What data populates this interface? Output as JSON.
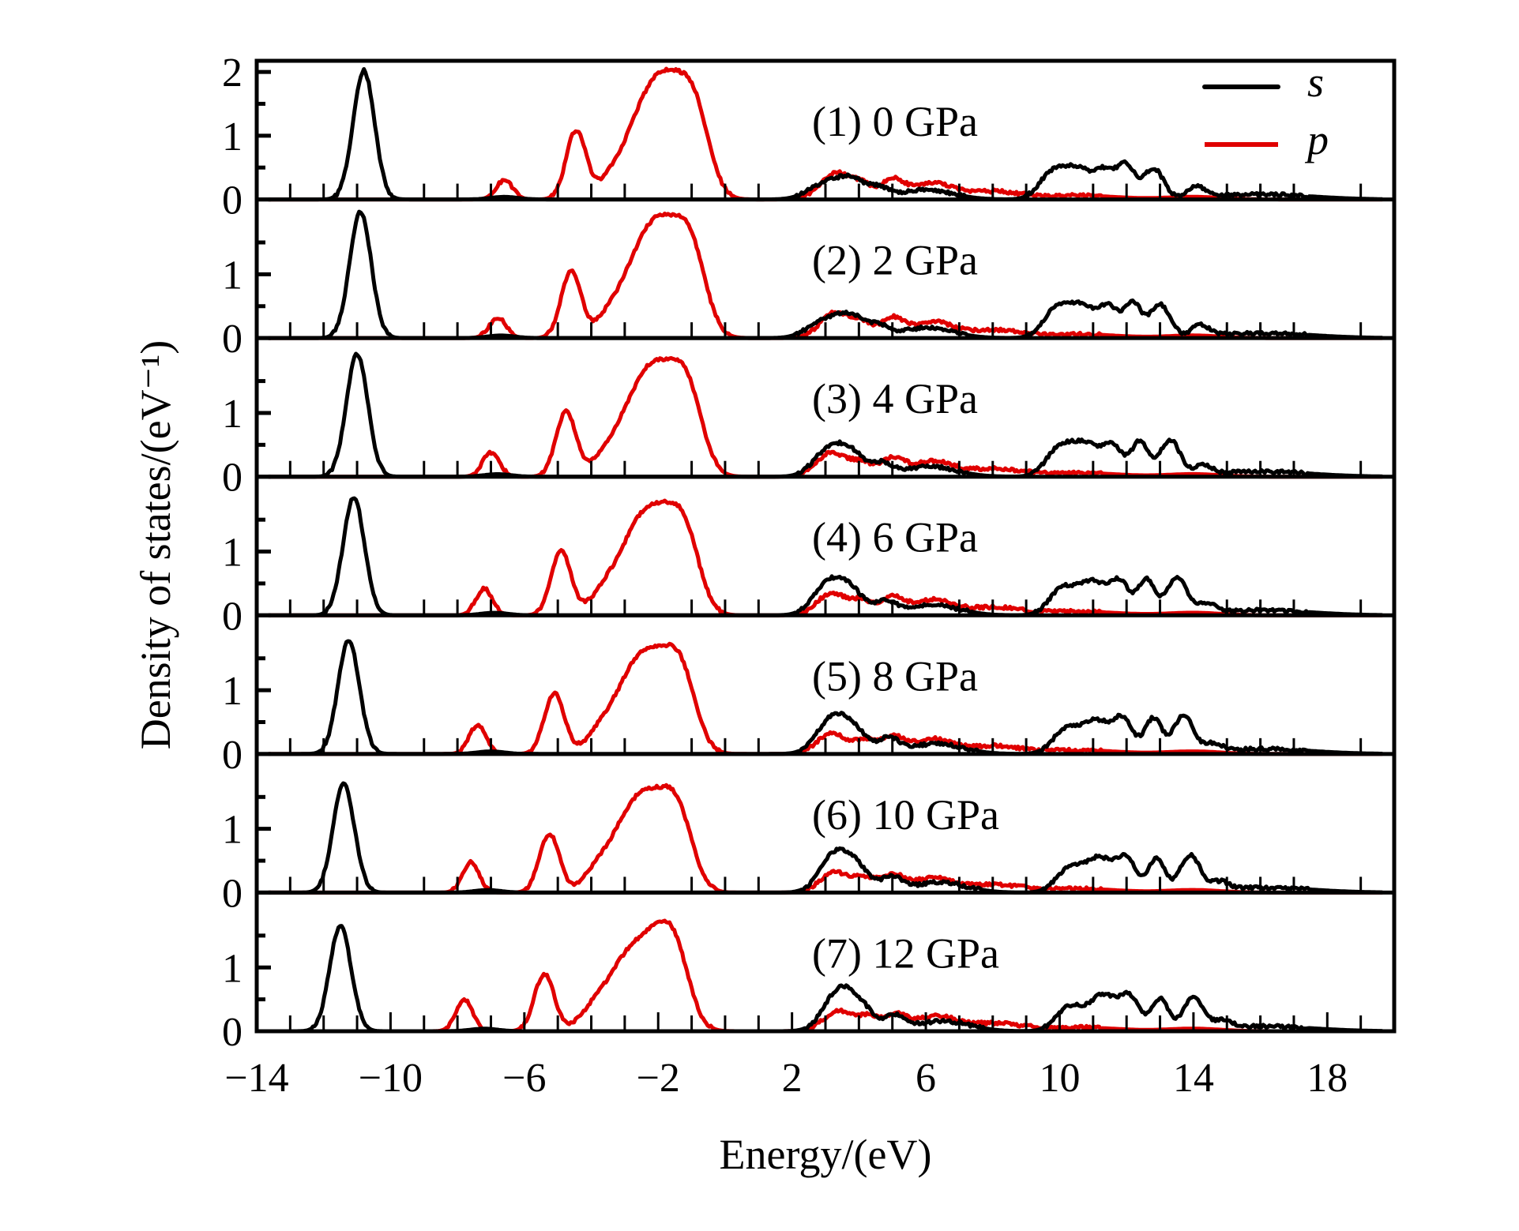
{
  "chart_data": {
    "type": "line",
    "title": "",
    "xlabel": "Energy/(eV)",
    "ylabel": "Density of states/(eV⁻¹)",
    "xlim": [
      -14,
      20
    ],
    "x_ticks": [
      -14,
      -10,
      -6,
      -2,
      2,
      6,
      10,
      14,
      18
    ],
    "x_tick_labels": [
      "−14",
      "−10",
      "−6",
      "−2",
      "2",
      "6",
      "10",
      "14",
      "18"
    ],
    "y_ticks_per_panel": [
      0,
      1
    ],
    "top_panel_extra_tick": 2,
    "ylim_per_panel": [
      0,
      2.1
    ],
    "grid": false,
    "legend": {
      "position": "top-right",
      "entries": [
        {
          "name": "s",
          "color": "#000000"
        },
        {
          "name": "p",
          "color": "#e00000"
        }
      ]
    },
    "panels": [
      {
        "label": "(1) 0 GPa",
        "pressure_gpa": 0,
        "s_peaks": [
          [
            -10.8,
            2.02,
            0.32
          ],
          [
            -6.6,
            0.04,
            0.4
          ],
          [
            3.0,
            0.25,
            0.5
          ],
          [
            3.8,
            0.28,
            0.4
          ],
          [
            4.6,
            0.15,
            0.3
          ],
          [
            6.0,
            0.15,
            0.8
          ],
          [
            9.8,
            0.42,
            0.4
          ],
          [
            10.6,
            0.45,
            0.4
          ],
          [
            11.4,
            0.42,
            0.3
          ],
          [
            12.0,
            0.5,
            0.25
          ],
          [
            12.8,
            0.48,
            0.3
          ],
          [
            14.1,
            0.18,
            0.25
          ],
          [
            16.0,
            0.08,
            1.5
          ]
        ],
        "p_peaks": [
          [
            -6.6,
            0.3,
            0.25
          ],
          [
            -4.45,
            1.08,
            0.3
          ],
          [
            -3.4,
            0.25,
            0.4
          ],
          [
            -2.5,
            1.05,
            0.55
          ],
          [
            -1.7,
            1.42,
            0.55
          ],
          [
            -0.9,
            1.2,
            0.45
          ],
          [
            3.3,
            0.42,
            0.45
          ],
          [
            4.1,
            0.2,
            0.3
          ],
          [
            5.0,
            0.3,
            0.35
          ],
          [
            6.2,
            0.25,
            0.6
          ],
          [
            8.0,
            0.12,
            0.8
          ],
          [
            10.5,
            0.06,
            1.2
          ],
          [
            14.0,
            0.04,
            0.8
          ]
        ]
      },
      {
        "label": "(2) 2 GPa",
        "pressure_gpa": 2,
        "s_peaks": [
          [
            -10.9,
            1.98,
            0.32
          ],
          [
            -6.7,
            0.04,
            0.4
          ],
          [
            3.0,
            0.28,
            0.5
          ],
          [
            3.8,
            0.3,
            0.4
          ],
          [
            4.6,
            0.16,
            0.3
          ],
          [
            6.0,
            0.16,
            0.8
          ],
          [
            9.9,
            0.44,
            0.4
          ],
          [
            10.7,
            0.47,
            0.4
          ],
          [
            11.5,
            0.45,
            0.3
          ],
          [
            12.2,
            0.52,
            0.25
          ],
          [
            13.0,
            0.52,
            0.3
          ],
          [
            14.2,
            0.18,
            0.25
          ],
          [
            16.0,
            0.08,
            1.5
          ]
        ],
        "p_peaks": [
          [
            -6.8,
            0.32,
            0.25
          ],
          [
            -4.6,
            1.05,
            0.3
          ],
          [
            -3.5,
            0.25,
            0.4
          ],
          [
            -2.6,
            1.0,
            0.55
          ],
          [
            -1.8,
            1.35,
            0.55
          ],
          [
            -1.0,
            1.18,
            0.45
          ],
          [
            3.3,
            0.4,
            0.45
          ],
          [
            4.1,
            0.2,
            0.3
          ],
          [
            5.0,
            0.3,
            0.35
          ],
          [
            6.2,
            0.25,
            0.6
          ],
          [
            8.0,
            0.12,
            0.8
          ],
          [
            10.5,
            0.06,
            1.2
          ],
          [
            14.0,
            0.04,
            0.8
          ]
        ]
      },
      {
        "label": "(3) 4 GPa",
        "pressure_gpa": 4,
        "s_peaks": [
          [
            -11.0,
            1.92,
            0.32
          ],
          [
            -6.8,
            0.04,
            0.4
          ],
          [
            3.1,
            0.42,
            0.45
          ],
          [
            3.8,
            0.32,
            0.4
          ],
          [
            4.7,
            0.18,
            0.3
          ],
          [
            6.1,
            0.16,
            0.8
          ],
          [
            10.0,
            0.44,
            0.4
          ],
          [
            10.8,
            0.48,
            0.4
          ],
          [
            11.6,
            0.46,
            0.3
          ],
          [
            12.4,
            0.54,
            0.25
          ],
          [
            13.3,
            0.56,
            0.3
          ],
          [
            14.3,
            0.15,
            0.25
          ],
          [
            16.0,
            0.08,
            1.5
          ]
        ],
        "p_peaks": [
          [
            -7.0,
            0.38,
            0.25
          ],
          [
            -4.75,
            1.02,
            0.3
          ],
          [
            -3.6,
            0.25,
            0.4
          ],
          [
            -2.7,
            0.95,
            0.55
          ],
          [
            -1.9,
            1.28,
            0.55
          ],
          [
            -1.1,
            1.15,
            0.45
          ],
          [
            3.2,
            0.38,
            0.45
          ],
          [
            4.1,
            0.2,
            0.3
          ],
          [
            5.0,
            0.28,
            0.35
          ],
          [
            6.2,
            0.24,
            0.6
          ],
          [
            8.0,
            0.12,
            0.8
          ],
          [
            10.5,
            0.06,
            1.2
          ],
          [
            14.0,
            0.04,
            0.8
          ]
        ]
      },
      {
        "label": "(4) 6 GPa",
        "pressure_gpa": 6,
        "s_peaks": [
          [
            -11.1,
            1.85,
            0.32
          ],
          [
            -6.9,
            0.04,
            0.4
          ],
          [
            3.1,
            0.5,
            0.45
          ],
          [
            3.8,
            0.32,
            0.4
          ],
          [
            4.8,
            0.2,
            0.3
          ],
          [
            6.2,
            0.16,
            0.8
          ],
          [
            10.1,
            0.42,
            0.4
          ],
          [
            11.0,
            0.5,
            0.4
          ],
          [
            11.8,
            0.5,
            0.3
          ],
          [
            12.6,
            0.55,
            0.25
          ],
          [
            13.5,
            0.58,
            0.3
          ],
          [
            14.4,
            0.15,
            0.25
          ],
          [
            16.0,
            0.08,
            1.5
          ]
        ],
        "p_peaks": [
          [
            -7.2,
            0.42,
            0.25
          ],
          [
            -4.9,
            1.0,
            0.3
          ],
          [
            -3.7,
            0.25,
            0.4
          ],
          [
            -2.8,
            0.92,
            0.55
          ],
          [
            -2.0,
            1.22,
            0.55
          ],
          [
            -1.2,
            1.12,
            0.45
          ],
          [
            3.2,
            0.35,
            0.45
          ],
          [
            4.1,
            0.2,
            0.3
          ],
          [
            5.0,
            0.27,
            0.35
          ],
          [
            6.2,
            0.24,
            0.6
          ],
          [
            8.0,
            0.12,
            0.8
          ],
          [
            10.5,
            0.06,
            1.2
          ],
          [
            14.0,
            0.04,
            0.8
          ]
        ]
      },
      {
        "label": "(5) 8 GPa",
        "pressure_gpa": 8,
        "s_peaks": [
          [
            -11.25,
            1.78,
            0.32
          ],
          [
            -7.0,
            0.04,
            0.4
          ],
          [
            3.2,
            0.55,
            0.45
          ],
          [
            3.9,
            0.3,
            0.4
          ],
          [
            4.9,
            0.22,
            0.3
          ],
          [
            6.3,
            0.16,
            0.8
          ],
          [
            10.2,
            0.38,
            0.4
          ],
          [
            11.1,
            0.5,
            0.4
          ],
          [
            11.9,
            0.52,
            0.3
          ],
          [
            12.8,
            0.55,
            0.25
          ],
          [
            13.7,
            0.58,
            0.3
          ],
          [
            14.6,
            0.12,
            0.25
          ],
          [
            16.0,
            0.08,
            1.5
          ]
        ],
        "p_peaks": [
          [
            -7.4,
            0.45,
            0.25
          ],
          [
            -5.1,
            0.95,
            0.3
          ],
          [
            -3.8,
            0.25,
            0.4
          ],
          [
            -2.9,
            0.9,
            0.55
          ],
          [
            -2.1,
            1.15,
            0.55
          ],
          [
            -1.3,
            1.1,
            0.45
          ],
          [
            3.2,
            0.32,
            0.45
          ],
          [
            4.2,
            0.2,
            0.3
          ],
          [
            5.0,
            0.26,
            0.35
          ],
          [
            6.2,
            0.23,
            0.6
          ],
          [
            8.0,
            0.12,
            0.8
          ],
          [
            10.5,
            0.06,
            1.2
          ],
          [
            14.0,
            0.04,
            0.8
          ]
        ]
      },
      {
        "label": "(6) 10 GPa",
        "pressure_gpa": 10,
        "s_peaks": [
          [
            -11.4,
            1.7,
            0.32
          ],
          [
            -7.1,
            0.04,
            0.4
          ],
          [
            3.3,
            0.6,
            0.45
          ],
          [
            4.0,
            0.3,
            0.4
          ],
          [
            5.0,
            0.22,
            0.3
          ],
          [
            6.4,
            0.16,
            0.8
          ],
          [
            10.3,
            0.38,
            0.4
          ],
          [
            11.2,
            0.52,
            0.4
          ],
          [
            12.0,
            0.5,
            0.3
          ],
          [
            12.9,
            0.52,
            0.25
          ],
          [
            13.9,
            0.56,
            0.3
          ],
          [
            14.8,
            0.12,
            0.25
          ],
          [
            16.0,
            0.08,
            1.5
          ]
        ],
        "p_peaks": [
          [
            -7.6,
            0.48,
            0.25
          ],
          [
            -5.25,
            0.92,
            0.3
          ],
          [
            -3.9,
            0.25,
            0.4
          ],
          [
            -3.0,
            0.85,
            0.55
          ],
          [
            -2.2,
            1.12,
            0.55
          ],
          [
            -1.4,
            1.08,
            0.45
          ],
          [
            3.3,
            0.32,
            0.45
          ],
          [
            4.2,
            0.2,
            0.3
          ],
          [
            5.0,
            0.26,
            0.35
          ],
          [
            6.2,
            0.23,
            0.6
          ],
          [
            8.0,
            0.12,
            0.8
          ],
          [
            10.5,
            0.06,
            1.2
          ],
          [
            14.0,
            0.04,
            0.8
          ]
        ]
      },
      {
        "label": "(7) 12 GPa",
        "pressure_gpa": 12,
        "s_peaks": [
          [
            -11.5,
            1.65,
            0.32
          ],
          [
            -7.2,
            0.04,
            0.4
          ],
          [
            3.4,
            0.62,
            0.45
          ],
          [
            4.1,
            0.3,
            0.4
          ],
          [
            5.1,
            0.22,
            0.3
          ],
          [
            6.5,
            0.16,
            0.8
          ],
          [
            10.3,
            0.38,
            0.4
          ],
          [
            11.3,
            0.55,
            0.4
          ],
          [
            12.1,
            0.5,
            0.3
          ],
          [
            13.0,
            0.5,
            0.25
          ],
          [
            14.0,
            0.5,
            0.3
          ],
          [
            14.9,
            0.12,
            0.25
          ],
          [
            16.0,
            0.08,
            1.5
          ]
        ],
        "p_peaks": [
          [
            -7.8,
            0.5,
            0.25
          ],
          [
            -5.4,
            0.9,
            0.3
          ],
          [
            -4.0,
            0.25,
            0.4
          ],
          [
            -3.1,
            0.85,
            0.55
          ],
          [
            -2.2,
            1.1,
            0.55
          ],
          [
            -1.5,
            1.05,
            0.45
          ],
          [
            3.4,
            0.32,
            0.45
          ],
          [
            4.3,
            0.2,
            0.3
          ],
          [
            5.1,
            0.26,
            0.35
          ],
          [
            6.3,
            0.23,
            0.6
          ],
          [
            8.0,
            0.12,
            0.8
          ],
          [
            10.5,
            0.06,
            1.2
          ],
          [
            14.0,
            0.04,
            0.8
          ]
        ]
      }
    ]
  }
}
